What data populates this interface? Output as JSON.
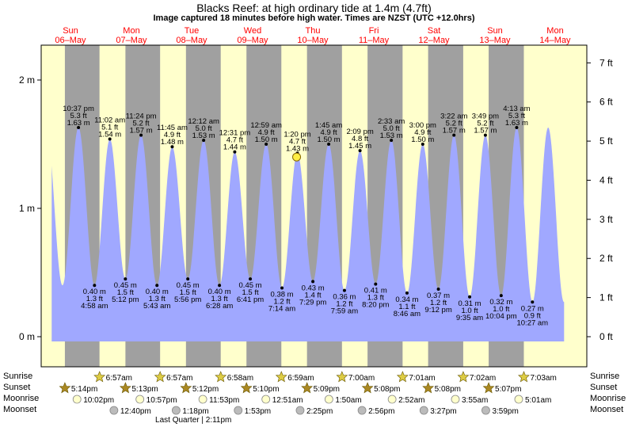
{
  "title": "Blacks Reef: at high  ordinary tide at 1.4m (4.7ft)",
  "subtitle": "Image captured 18 minutes before high water. Times are NZST (UTC +12.0hrs)",
  "colors": {
    "night": "#a0a0a0",
    "day": "#ffffcc",
    "water": "#a0a8ff",
    "day_header": "#ff0000",
    "sun_star": "#ddcc44",
    "sunset_star": "#aa8822",
    "moonrise": "#ffffcc",
    "moonset": "#bbbbbb",
    "current_marker": "#ffee44"
  },
  "day_headers": [
    {
      "day": "Sun",
      "date": "06–May"
    },
    {
      "day": "Mon",
      "date": "07–May"
    },
    {
      "day": "Tue",
      "date": "08–May"
    },
    {
      "day": "Wed",
      "date": "09–May"
    },
    {
      "day": "Thu",
      "date": "10–May"
    },
    {
      "day": "Fri",
      "date": "11–May"
    },
    {
      "day": "Sat",
      "date": "12–May"
    },
    {
      "day": "Sun",
      "date": "13–May"
    },
    {
      "day": "Mon",
      "date": "14–May"
    }
  ],
  "row_labels": {
    "sunrise": "Sunrise",
    "sunset": "Sunset",
    "moonrise": "Moonrise",
    "moonset": "Moonset"
  },
  "chart_data": {
    "type": "area",
    "title": "Blacks Reef: at high  ordinary tide at 1.4m (4.7ft)",
    "y_left_ticks": [
      "0 m",
      "1 m",
      "2 m"
    ],
    "y_right_ticks": [
      "0 ft",
      "1 ft",
      "2 ft",
      "3 ft",
      "4 ft",
      "5 ft",
      "6 ft",
      "7 ft"
    ],
    "ylim_m": [
      -0.2,
      2.25
    ],
    "x_start": "06-May 12:00",
    "x_end": "14-May 23:00",
    "current_tide": {
      "time": "10-May 13:02",
      "height_m": 1.4
    },
    "tides": [
      {
        "type": "high",
        "time": "06-May 22:37",
        "label_time": "10:37 pm",
        "label_ft": "5.3 ft",
        "label_m": "1.63 m",
        "height_m": 1.63
      },
      {
        "type": "low",
        "time": "07-May 04:58",
        "label_time": "4:58 am",
        "label_ft": "1.3 ft",
        "label_m": "0.40 m",
        "height_m": 0.4
      },
      {
        "type": "high",
        "time": "07-May 11:02",
        "label_time": "11:02 am",
        "label_ft": "5.1 ft",
        "label_m": "1.54 m",
        "height_m": 1.54
      },
      {
        "type": "low",
        "time": "07-May 17:12",
        "label_time": "5:12 pm",
        "label_ft": "1.5 ft",
        "label_m": "0.45 m",
        "height_m": 0.45
      },
      {
        "type": "high",
        "time": "07-May 23:24",
        "label_time": "11:24 pm",
        "label_ft": "5.2 ft",
        "label_m": "1.57 m",
        "height_m": 1.57
      },
      {
        "type": "low",
        "time": "08-May 05:43",
        "label_time": "5:43 am",
        "label_ft": "1.3 ft",
        "label_m": "0.40 m",
        "height_m": 0.4
      },
      {
        "type": "high",
        "time": "08-May 11:45",
        "label_time": "11:45 am",
        "label_ft": "4.9 ft",
        "label_m": "1.48 m",
        "height_m": 1.48
      },
      {
        "type": "low",
        "time": "08-May 17:56",
        "label_time": "5:56 pm",
        "label_ft": "1.5 ft",
        "label_m": "0.45 m",
        "height_m": 0.45
      },
      {
        "type": "high",
        "time": "09-May 00:12",
        "label_time": "12:12 am",
        "label_ft": "5.0 ft",
        "label_m": "1.53 m",
        "height_m": 1.53
      },
      {
        "type": "low",
        "time": "09-May 06:28",
        "label_time": "6:28 am",
        "label_ft": "1.3 ft",
        "label_m": "0.40 m",
        "height_m": 0.4
      },
      {
        "type": "high",
        "time": "09-May 12:31",
        "label_time": "12:31 pm",
        "label_ft": "4.7 ft",
        "label_m": "1.44 m",
        "height_m": 1.44
      },
      {
        "type": "low",
        "time": "09-May 18:41",
        "label_time": "6:41 pm",
        "label_ft": "1.5 ft",
        "label_m": "0.45 m",
        "height_m": 0.45
      },
      {
        "type": "high",
        "time": "10-May 00:59",
        "label_time": "12:59 am",
        "label_ft": "4.9 ft",
        "label_m": "1.50 m",
        "height_m": 1.5
      },
      {
        "type": "low",
        "time": "10-May 07:14",
        "label_time": "7:14 am",
        "label_ft": "1.2 ft",
        "label_m": "0.38 m",
        "height_m": 0.38
      },
      {
        "type": "high",
        "time": "10-May 13:20",
        "label_time": "1:20 pm",
        "label_ft": "4.7 ft",
        "label_m": "1.43 m",
        "height_m": 1.43
      },
      {
        "type": "low",
        "time": "10-May 19:29",
        "label_time": "7:29 pm",
        "label_ft": "1.4 ft",
        "label_m": "0.43 m",
        "height_m": 0.43
      },
      {
        "type": "high",
        "time": "11-May 01:45",
        "label_time": "1:45 am",
        "label_ft": "4.9 ft",
        "label_m": "1.50 m",
        "height_m": 1.5
      },
      {
        "type": "low",
        "time": "11-May 07:59",
        "label_time": "7:59 am",
        "label_ft": "1.2 ft",
        "label_m": "0.36 m",
        "height_m": 0.36
      },
      {
        "type": "high",
        "time": "11-May 14:09",
        "label_time": "2:09 pm",
        "label_ft": "4.8 ft",
        "label_m": "1.45 m",
        "height_m": 1.45
      },
      {
        "type": "low",
        "time": "11-May 20:20",
        "label_time": "8:20 pm",
        "label_ft": "1.3 ft",
        "label_m": "0.41 m",
        "height_m": 0.41
      },
      {
        "type": "high",
        "time": "12-May 02:33",
        "label_time": "2:33 am",
        "label_ft": "5.0 ft",
        "label_m": "1.53 m",
        "height_m": 1.53
      },
      {
        "type": "low",
        "time": "12-May 08:46",
        "label_time": "8:46 am",
        "label_ft": "1.1 ft",
        "label_m": "0.34 m",
        "height_m": 0.34
      },
      {
        "type": "high",
        "time": "12-May 15:00",
        "label_time": "3:00 pm",
        "label_ft": "4.9 ft",
        "label_m": "1.50 m",
        "height_m": 1.5
      },
      {
        "type": "low",
        "time": "12-May 21:12",
        "label_time": "9:12 pm",
        "label_ft": "1.2 ft",
        "label_m": "0.37 m",
        "height_m": 0.37
      },
      {
        "type": "high",
        "time": "13-May 03:22",
        "label_time": "3:22 am",
        "label_ft": "5.2 ft",
        "label_m": "1.57 m",
        "height_m": 1.57
      },
      {
        "type": "low",
        "time": "13-May 09:35",
        "label_time": "9:35 am",
        "label_ft": "1.0 ft",
        "label_m": "0.31 m",
        "height_m": 0.31
      },
      {
        "type": "high",
        "time": "13-May 15:49",
        "label_time": "3:49 pm",
        "label_ft": "5.2 ft",
        "label_m": "1.57 m",
        "height_m": 1.57
      },
      {
        "type": "low",
        "time": "13-May 22:04",
        "label_time": "10:04 pm",
        "label_ft": "1.0 ft",
        "label_m": "0.32 m",
        "height_m": 0.32
      },
      {
        "type": "high",
        "time": "14-May 04:13",
        "label_time": "4:13 am",
        "label_ft": "5.3 ft",
        "label_m": "1.63 m",
        "height_m": 1.63
      },
      {
        "type": "low",
        "time": "14-May 10:27",
        "label_time": "10:27 am",
        "label_ft": "0.9 ft",
        "label_m": "0.27 m",
        "height_m": 0.27
      }
    ]
  },
  "astro": {
    "sunrise": [
      {
        "time": "07-May 06:57",
        "label": "6:57am"
      },
      {
        "time": "08-May 06:57",
        "label": "6:57am"
      },
      {
        "time": "09-May 06:58",
        "label": "6:58am"
      },
      {
        "time": "10-May 06:59",
        "label": "6:59am"
      },
      {
        "time": "11-May 07:00",
        "label": "7:00am"
      },
      {
        "time": "12-May 07:01",
        "label": "7:01am"
      },
      {
        "time": "13-May 07:02",
        "label": "7:02am"
      },
      {
        "time": "14-May 07:03",
        "label": "7:03am"
      }
    ],
    "sunset": [
      {
        "time": "06-May 17:14",
        "label": "5:14pm"
      },
      {
        "time": "07-May 17:13",
        "label": "5:13pm"
      },
      {
        "time": "08-May 17:12",
        "label": "5:12pm"
      },
      {
        "time": "09-May 17:10",
        "label": "5:10pm"
      },
      {
        "time": "10-May 17:09",
        "label": "5:09pm"
      },
      {
        "time": "11-May 17:08",
        "label": "5:08pm"
      },
      {
        "time": "12-May 17:08",
        "label": "5:08pm"
      },
      {
        "time": "13-May 17:07",
        "label": "5:07pm"
      }
    ],
    "moonrise": [
      {
        "time": "06-May 22:02",
        "label": "10:02pm"
      },
      {
        "time": "07-May 22:57",
        "label": "10:57pm"
      },
      {
        "time": "08-May 23:53",
        "label": "11:53pm"
      },
      {
        "time": "10-May 00:51",
        "label": "12:51am"
      },
      {
        "time": "11-May 01:50",
        "label": "1:50am"
      },
      {
        "time": "12-May 02:52",
        "label": "2:52am"
      },
      {
        "time": "13-May 03:55",
        "label": "3:55am"
      },
      {
        "time": "14-May 05:01",
        "label": "5:01am"
      }
    ],
    "moonset": [
      {
        "time": "07-May 12:40",
        "label": "12:40pm"
      },
      {
        "time": "08-May 13:18",
        "label": "1:18pm"
      },
      {
        "time": "09-May 13:53",
        "label": "1:53pm"
      },
      {
        "time": "10-May 14:25",
        "label": "2:25pm"
      },
      {
        "time": "11-May 14:56",
        "label": "2:56pm"
      },
      {
        "time": "12-May 15:27",
        "label": "3:27pm"
      },
      {
        "time": "13-May 15:59",
        "label": "3:59pm"
      }
    ],
    "moon_phase": {
      "time": "08-May 14:11",
      "label": "Last Quarter | 2:11pm"
    }
  }
}
